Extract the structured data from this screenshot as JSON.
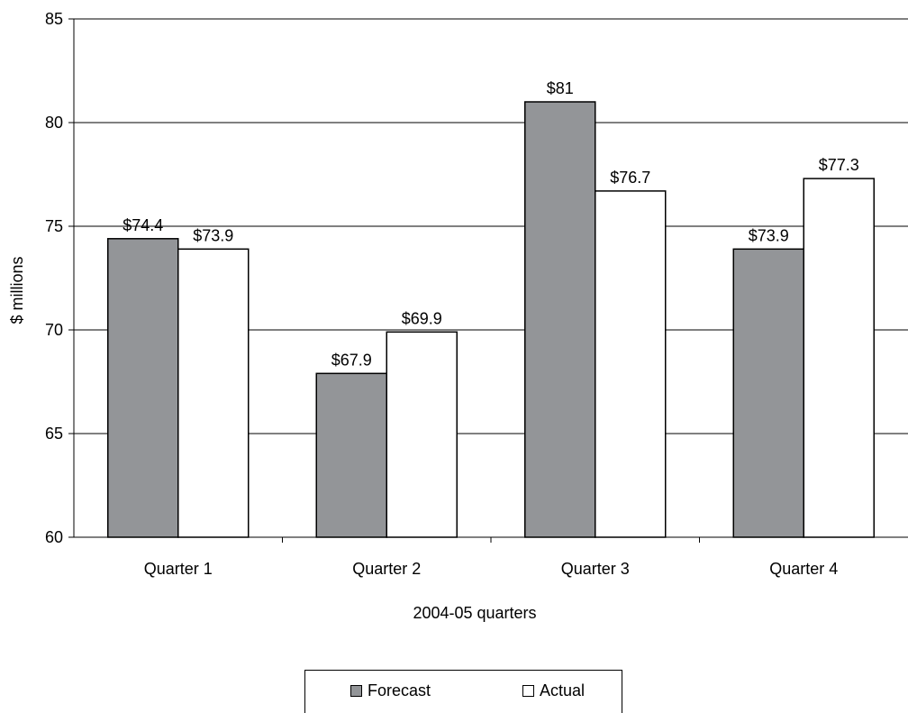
{
  "chart_data": {
    "type": "bar",
    "categories": [
      "Quarter 1",
      "Quarter 2",
      "Quarter 3",
      "Quarter 4"
    ],
    "series": [
      {
        "name": "Forecast",
        "values": [
          74.4,
          67.9,
          81,
          73.9
        ],
        "labels": [
          "$74.4",
          "$67.9",
          "$81",
          "$73.9"
        ],
        "color": "#939598"
      },
      {
        "name": "Actual",
        "values": [
          73.9,
          69.9,
          76.7,
          77.3
        ],
        "labels": [
          "$73.9",
          "$69.9",
          "$76.7",
          "$77.3"
        ],
        "color": "#ffffff"
      }
    ],
    "xlabel": "2004-05 quarters",
    "ylabel": "$ millions",
    "ylim": [
      60,
      85
    ],
    "yticks": [
      60,
      65,
      70,
      75,
      80,
      85
    ],
    "grid": true,
    "legend": "bottom"
  }
}
